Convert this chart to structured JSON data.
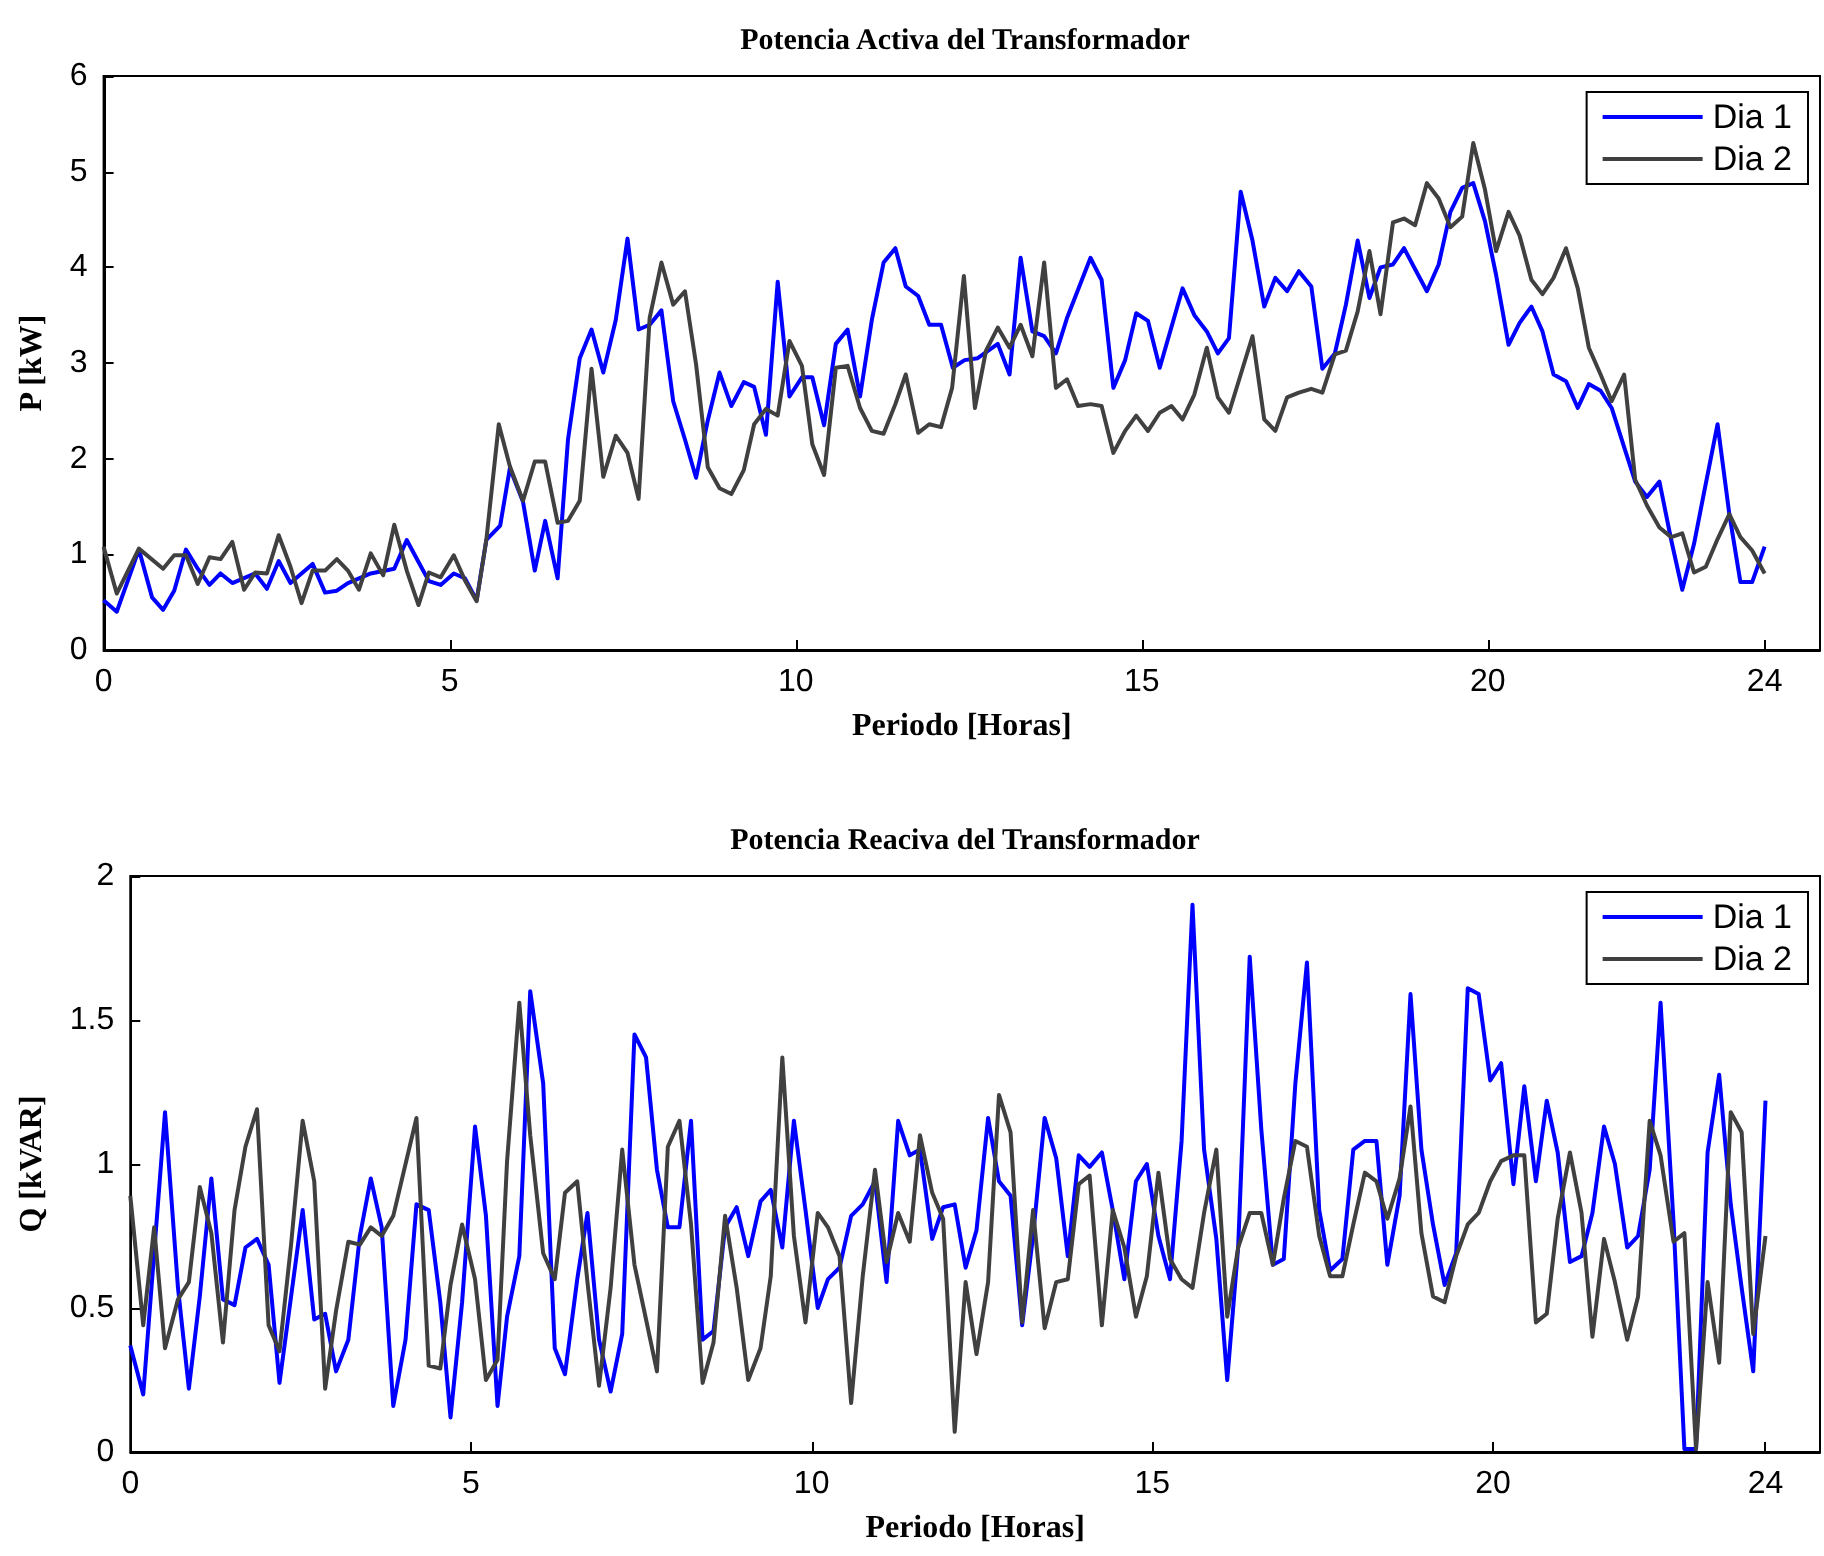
{
  "chart_data": [
    {
      "type": "line",
      "title": "Potencia Activa del Transformador",
      "xlabel": "Periodo [Horas]",
      "ylabel": "P [kW]",
      "xlim": [
        0,
        24.8
      ],
      "xticks": [
        0,
        5,
        10,
        15,
        20,
        24
      ],
      "ylim": [
        0,
        6
      ],
      "yticks": [
        0,
        1,
        2,
        3,
        4,
        5,
        6
      ],
      "grid": false,
      "legend": "top right",
      "series": [
        {
          "name": "Dia 1",
          "color": "#0000ff",
          "x": [
            0,
            0.19,
            0.51,
            0.7,
            0.86,
            1.02,
            1.19,
            1.36,
            1.53,
            1.69,
            1.86,
            2.19,
            2.36,
            2.53,
            2.7,
            3.02,
            3.2,
            3.37,
            3.53,
            3.86,
            4.2,
            4.38,
            4.55,
            4.7,
            4.87,
            5.06,
            5.22,
            5.39,
            5.53,
            5.73,
            5.87,
            6.06,
            6.23,
            6.38,
            6.56,
            6.71,
            6.88,
            7.05,
            7.22,
            7.4,
            7.57,
            7.73,
            7.89,
            8.06,
            8.23,
            8.4,
            8.56,
            8.73,
            8.9,
            9.07,
            9.25,
            9.4,
            9.57,
            9.74,
            9.91,
            10.09,
            10.24,
            10.41,
            10.58,
            10.75,
            10.93,
            11.1,
            11.27,
            11.44,
            11.59,
            11.77,
            11.93,
            12.1,
            12.27,
            12.44,
            12.63,
            12.92,
            13.09,
            13.25,
            13.42,
            13.59,
            13.76,
            13.92,
            14.26,
            14.42,
            14.59,
            14.76,
            14.92,
            15.09,
            15.26,
            15.59,
            15.76,
            15.94,
            16.1,
            16.26,
            16.43,
            16.6,
            16.77,
            16.93,
            17.1,
            17.27,
            17.45,
            17.61,
            17.79,
            17.95,
            18.12,
            18.29,
            18.45,
            18.63,
            18.79,
            18.95,
            19.12,
            19.29,
            19.46,
            19.63,
            19.79,
            19.96,
            20.12,
            20.3,
            20.46,
            20.63,
            20.79,
            20.95,
            21.13,
            21.3,
            21.46,
            21.63,
            21.79,
            21.97,
            22.13,
            22.3,
            22.48,
            22.65,
            22.81,
            22.98,
            23.15,
            23.32,
            23.49,
            23.65,
            23.82,
            24
          ],
          "values": [
            0.52,
            0.4,
            1.05,
            0.55,
            0.42,
            0.62,
            1.05,
            0.85,
            0.68,
            0.8,
            0.7,
            0.8,
            0.64,
            0.93,
            0.7,
            0.9,
            0.6,
            0.62,
            0.7,
            0.8,
            0.85,
            1.15,
            0.92,
            0.72,
            0.68,
            0.8,
            0.75,
            0.52,
            1.15,
            1.3,
            1.9,
            1.55,
            0.83,
            1.35,
            0.75,
            2.2,
            3.05,
            3.35,
            2.9,
            3.45,
            4.3,
            3.35,
            3.4,
            3.55,
            2.6,
            2.2,
            1.8,
            2.4,
            2.9,
            2.55,
            2.8,
            2.75,
            2.25,
            3.85,
            2.65,
            2.85,
            2.85,
            2.35,
            3.2,
            3.35,
            2.65,
            3.45,
            4.05,
            4.2,
            3.8,
            3.7,
            3.4,
            3.4,
            2.95,
            3.03,
            3.05,
            3.2,
            2.88,
            4.1,
            3.33,
            3.28,
            3.1,
            3.47,
            4.1,
            3.87,
            2.74,
            3.03,
            3.52,
            3.44,
            2.95,
            3.78,
            3.5,
            3.33,
            3.1,
            3.26,
            4.79,
            4.28,
            3.59,
            3.89,
            3.75,
            3.96,
            3.8,
            2.94,
            3.1,
            3.61,
            4.28,
            3.68,
            4.0,
            4.03,
            4.2,
            3.98,
            3.75,
            4.03,
            4.58,
            4.83,
            4.88,
            4.48,
            3.92,
            3.19,
            3.42,
            3.59,
            3.33,
            2.88,
            2.81,
            2.53,
            2.78,
            2.71,
            2.53,
            2.12,
            1.76,
            1.6,
            1.76,
            1.15,
            0.63,
            1.11,
            1.74,
            2.36,
            1.42,
            0.71,
            0.71,
            1.08
          ]
        },
        {
          "name": "Dia 2",
          "color": "#404040",
          "x": [
            0,
            0.19,
            0.51,
            0.86,
            1.02,
            1.19,
            1.36,
            1.53,
            1.69,
            1.86,
            2.03,
            2.19,
            2.36,
            2.53,
            2.7,
            2.86,
            3.02,
            3.2,
            3.37,
            3.53,
            3.69,
            3.86,
            4.04,
            4.2,
            4.38,
            4.55,
            4.7,
            4.87,
            5.06,
            5.22,
            5.39,
            5.53,
            5.71,
            5.87,
            6.06,
            6.23,
            6.38,
            6.56,
            6.71,
            6.88,
            7.05,
            7.22,
            7.4,
            7.57,
            7.73,
            7.89,
            8.06,
            8.23,
            8.4,
            8.56,
            8.73,
            8.9,
            9.07,
            9.25,
            9.4,
            9.57,
            9.74,
            9.91,
            10.09,
            10.24,
            10.41,
            10.58,
            10.75,
            10.93,
            11.1,
            11.27,
            11.44,
            11.59,
            11.77,
            11.93,
            12.1,
            12.26,
            12.43,
            12.59,
            12.75,
            12.92,
            13.09,
            13.25,
            13.42,
            13.59,
            13.76,
            13.92,
            14.08,
            14.26,
            14.42,
            14.59,
            14.76,
            14.92,
            15.09,
            15.26,
            15.43,
            15.59,
            15.76,
            15.94,
            16.1,
            16.26,
            16.43,
            16.6,
            16.77,
            16.93,
            17.1,
            17.27,
            17.45,
            17.61,
            17.79,
            17.95,
            18.12,
            18.29,
            18.45,
            18.63,
            18.79,
            18.95,
            19.12,
            19.29,
            19.46,
            19.63,
            19.79,
            19.96,
            20.12,
            20.3,
            20.46,
            20.63,
            20.79,
            20.95,
            21.13,
            21.3,
            21.46,
            21.63,
            21.79,
            21.97,
            22.13,
            22.3,
            22.48,
            22.65,
            22.81,
            22.98,
            23.15,
            23.32,
            23.49,
            23.65,
            23.82,
            24
          ],
          "values": [
            1.08,
            0.59,
            1.06,
            0.85,
            0.99,
            0.99,
            0.69,
            0.97,
            0.95,
            1.13,
            0.63,
            0.81,
            0.8,
            1.2,
            0.87,
            0.49,
            0.83,
            0.83,
            0.95,
            0.83,
            0.63,
            1.01,
            0.78,
            1.31,
            0.83,
            0.47,
            0.81,
            0.76,
            0.99,
            0.73,
            0.51,
            1.15,
            2.36,
            1.92,
            1.56,
            1.97,
            1.97,
            1.33,
            1.35,
            1.56,
            2.94,
            1.81,
            2.24,
            2.06,
            1.58,
            3.47,
            4.05,
            3.61,
            3.75,
            2.99,
            1.91,
            1.69,
            1.63,
            1.88,
            2.36,
            2.52,
            2.45,
            3.23,
            2.97,
            2.15,
            1.83,
            2.95,
            2.97,
            2.53,
            2.29,
            2.26,
            2.57,
            2.88,
            2.27,
            2.36,
            2.33,
            2.74,
            3.91,
            2.53,
            3.13,
            3.37,
            3.16,
            3.4,
            3.07,
            4.05,
            2.74,
            2.83,
            2.55,
            2.57,
            2.55,
            2.06,
            2.29,
            2.45,
            2.29,
            2.48,
            2.55,
            2.41,
            2.67,
            3.16,
            2.64,
            2.48,
            2.88,
            3.28,
            2.41,
            2.29,
            2.64,
            2.69,
            2.73,
            2.69,
            3.09,
            3.13,
            3.54,
            4.17,
            3.51,
            4.47,
            4.51,
            4.44,
            4.88,
            4.72,
            4.42,
            4.53,
            5.3,
            4.81,
            4.17,
            4.58,
            4.33,
            3.87,
            3.72,
            3.89,
            4.2,
            3.78,
            3.16,
            2.88,
            2.6,
            2.88,
            1.78,
            1.51,
            1.28,
            1.18,
            1.22,
            0.81,
            0.87,
            1.16,
            1.42,
            1.18,
            1.04,
            0.8
          ]
        }
      ]
    },
    {
      "type": "line",
      "title": "Potencia Reaciva del Transformador",
      "xlabel": "Periodo [Horas]",
      "ylabel": "Q [kVAR]",
      "xlim": [
        0,
        24.8
      ],
      "xticks": [
        0,
        5,
        10,
        15,
        20,
        24
      ],
      "ylim": [
        0,
        2
      ],
      "yticks": [
        0,
        0.5,
        1,
        1.5,
        2
      ],
      "grid": false,
      "legend": "top right",
      "series": [
        {
          "name": "Dia 1",
          "color": "#0000ff",
          "x": [
            0,
            0.19,
            0.51,
            0.7,
            0.86,
            1.02,
            1.19,
            1.36,
            1.53,
            1.69,
            1.86,
            2.03,
            2.19,
            2.36,
            2.53,
            2.7,
            2.86,
            3.02,
            3.2,
            3.37,
            3.53,
            3.69,
            3.86,
            4.04,
            4.2,
            4.38,
            4.55,
            4.7,
            4.87,
            5.06,
            5.22,
            5.39,
            5.53,
            5.71,
            5.87,
            6.06,
            6.23,
            6.38,
            6.56,
            6.71,
            6.88,
            7.05,
            7.22,
            7.4,
            7.57,
            7.73,
            7.89,
            8.06,
            8.23,
            8.4,
            8.56,
            8.73,
            8.9,
            9.07,
            9.25,
            9.4,
            9.57,
            9.74,
            9.91,
            10.09,
            10.24,
            10.41,
            10.58,
            10.75,
            10.93,
            11.1,
            11.27,
            11.44,
            11.59,
            11.77,
            11.93,
            12.1,
            12.26,
            12.42,
            12.59,
            12.75,
            12.92,
            13.09,
            13.25,
            13.42,
            13.59,
            13.76,
            13.92,
            14.08,
            14.26,
            14.42,
            14.59,
            14.76,
            14.92,
            15.09,
            15.26,
            15.43,
            15.59,
            15.76,
            15.94,
            16.1,
            16.26,
            16.43,
            16.6,
            16.77,
            16.93,
            17.1,
            17.27,
            17.45,
            17.61,
            17.79,
            17.95,
            18.12,
            18.29,
            18.45,
            18.63,
            18.79,
            18.95,
            19.12,
            19.29,
            19.46,
            19.63,
            19.79,
            19.96,
            20.12,
            20.3,
            20.46,
            20.63,
            20.79,
            20.95,
            21.13,
            21.3,
            21.46,
            21.63,
            21.79,
            21.97,
            22.13,
            22.3,
            22.46,
            22.65,
            22.81,
            22.98,
            23.15,
            23.32,
            23.49,
            23.65,
            23.82,
            24
          ],
          "values": [
            0.37,
            0.2,
            1.18,
            0.57,
            0.22,
            0.54,
            0.95,
            0.53,
            0.51,
            0.71,
            0.74,
            0.65,
            0.24,
            0.54,
            0.84,
            0.46,
            0.48,
            0.28,
            0.39,
            0.75,
            0.95,
            0.78,
            0.16,
            0.39,
            0.86,
            0.84,
            0.52,
            0.12,
            0.52,
            1.13,
            0.82,
            0.16,
            0.47,
            0.68,
            1.6,
            1.28,
            0.36,
            0.27,
            0.6,
            0.83,
            0.39,
            0.21,
            0.41,
            1.45,
            1.37,
            0.98,
            0.78,
            0.78,
            1.15,
            0.39,
            0.42,
            0.78,
            0.85,
            0.68,
            0.87,
            0.91,
            0.71,
            1.15,
            0.84,
            0.5,
            0.6,
            0.64,
            0.82,
            0.86,
            0.94,
            0.59,
            1.15,
            1.03,
            1.05,
            0.74,
            0.85,
            0.86,
            0.64,
            0.77,
            1.16,
            0.94,
            0.89,
            0.44,
            0.75,
            1.16,
            1.02,
            0.68,
            1.03,
            0.99,
            1.04,
            0.84,
            0.6,
            0.94,
            1.0,
            0.75,
            0.6,
            1.08,
            1.9,
            1.05,
            0.74,
            0.25,
            0.71,
            1.72,
            1.12,
            0.65,
            0.67,
            1.28,
            1.7,
            0.84,
            0.63,
            0.67,
            1.05,
            1.08,
            1.08,
            0.65,
            0.89,
            1.59,
            1.05,
            0.79,
            0.58,
            0.69,
            1.61,
            1.59,
            1.29,
            1.35,
            0.93,
            1.27,
            0.94,
            1.22,
            1.04,
            0.66,
            0.68,
            0.83,
            1.13,
            1.0,
            0.71,
            0.75,
            0.98,
            1.56,
            0.8,
            0.01,
            0.01,
            1.04,
            1.31,
            0.86,
            0.57,
            0.28,
            1.22
          ]
        },
        {
          "name": "Dia 2",
          "color": "#404040",
          "x": [
            0,
            0.19,
            0.35,
            0.51,
            0.7,
            0.86,
            1.02,
            1.19,
            1.36,
            1.53,
            1.69,
            1.86,
            2.03,
            2.19,
            2.36,
            2.53,
            2.7,
            2.86,
            3.02,
            3.2,
            3.37,
            3.53,
            3.69,
            3.86,
            4.04,
            4.2,
            4.38,
            4.55,
            4.7,
            4.87,
            5.06,
            5.22,
            5.39,
            5.53,
            5.71,
            5.87,
            6.06,
            6.23,
            6.38,
            6.56,
            6.71,
            6.88,
            7.05,
            7.22,
            7.4,
            7.57,
            7.73,
            7.89,
            8.06,
            8.23,
            8.4,
            8.56,
            8.73,
            8.9,
            9.07,
            9.25,
            9.4,
            9.57,
            9.74,
            9.91,
            10.09,
            10.24,
            10.41,
            10.58,
            10.75,
            10.93,
            11.1,
            11.27,
            11.44,
            11.59,
            11.77,
            11.93,
            12.1,
            12.26,
            12.42,
            12.59,
            12.75,
            12.92,
            13.09,
            13.25,
            13.42,
            13.59,
            13.76,
            13.92,
            14.08,
            14.26,
            14.42,
            14.59,
            14.76,
            14.92,
            15.09,
            15.26,
            15.43,
            15.59,
            15.76,
            15.94,
            16.1,
            16.26,
            16.43,
            16.6,
            16.77,
            16.93,
            17.1,
            17.27,
            17.45,
            17.61,
            17.79,
            17.95,
            18.12,
            18.29,
            18.45,
            18.63,
            18.79,
            18.95,
            19.12,
            19.29,
            19.46,
            19.63,
            19.79,
            19.96,
            20.12,
            20.3,
            20.46,
            20.63,
            20.79,
            20.95,
            21.13,
            21.3,
            21.46,
            21.63,
            21.79,
            21.97,
            22.13,
            22.3,
            22.46,
            22.65,
            22.81,
            22.98,
            23.15,
            23.32,
            23.49,
            23.65,
            23.82,
            24
          ],
          "values": [
            0.89,
            0.44,
            0.78,
            0.36,
            0.53,
            0.59,
            0.92,
            0.76,
            0.38,
            0.84,
            1.06,
            1.19,
            0.44,
            0.35,
            0.72,
            1.15,
            0.94,
            0.22,
            0.49,
            0.73,
            0.72,
            0.78,
            0.75,
            0.82,
            1.0,
            1.16,
            0.3,
            0.29,
            0.58,
            0.79,
            0.6,
            0.25,
            0.32,
            1.01,
            1.56,
            1.1,
            0.69,
            0.6,
            0.9,
            0.94,
            0.59,
            0.23,
            0.57,
            1.05,
            0.65,
            0.46,
            0.28,
            1.06,
            1.15,
            0.79,
            0.24,
            0.38,
            0.82,
            0.57,
            0.25,
            0.36,
            0.61,
            1.37,
            0.75,
            0.45,
            0.83,
            0.78,
            0.68,
            0.17,
            0.61,
            0.98,
            0.66,
            0.83,
            0.73,
            1.1,
            0.9,
            0.81,
            0.07,
            0.59,
            0.34,
            0.59,
            1.24,
            1.11,
            0.45,
            0.84,
            0.43,
            0.59,
            0.6,
            0.93,
            0.96,
            0.44,
            0.84,
            0.71,
            0.47,
            0.61,
            0.97,
            0.67,
            0.6,
            0.57,
            0.83,
            1.05,
            0.47,
            0.71,
            0.83,
            0.83,
            0.65,
            0.88,
            1.08,
            1.06,
            0.75,
            0.61,
            0.61,
            0.79,
            0.97,
            0.94,
            0.81,
            0.95,
            1.2,
            0.76,
            0.54,
            0.52,
            0.68,
            0.79,
            0.83,
            0.94,
            1.01,
            1.03,
            1.03,
            0.45,
            0.48,
            0.81,
            1.04,
            0.83,
            0.4,
            0.74,
            0.59,
            0.39,
            0.54,
            1.15,
            1.03,
            0.73,
            0.76,
            0.01,
            0.59,
            0.31,
            1.18,
            1.11,
            0.41,
            0.75
          ]
        }
      ]
    }
  ]
}
